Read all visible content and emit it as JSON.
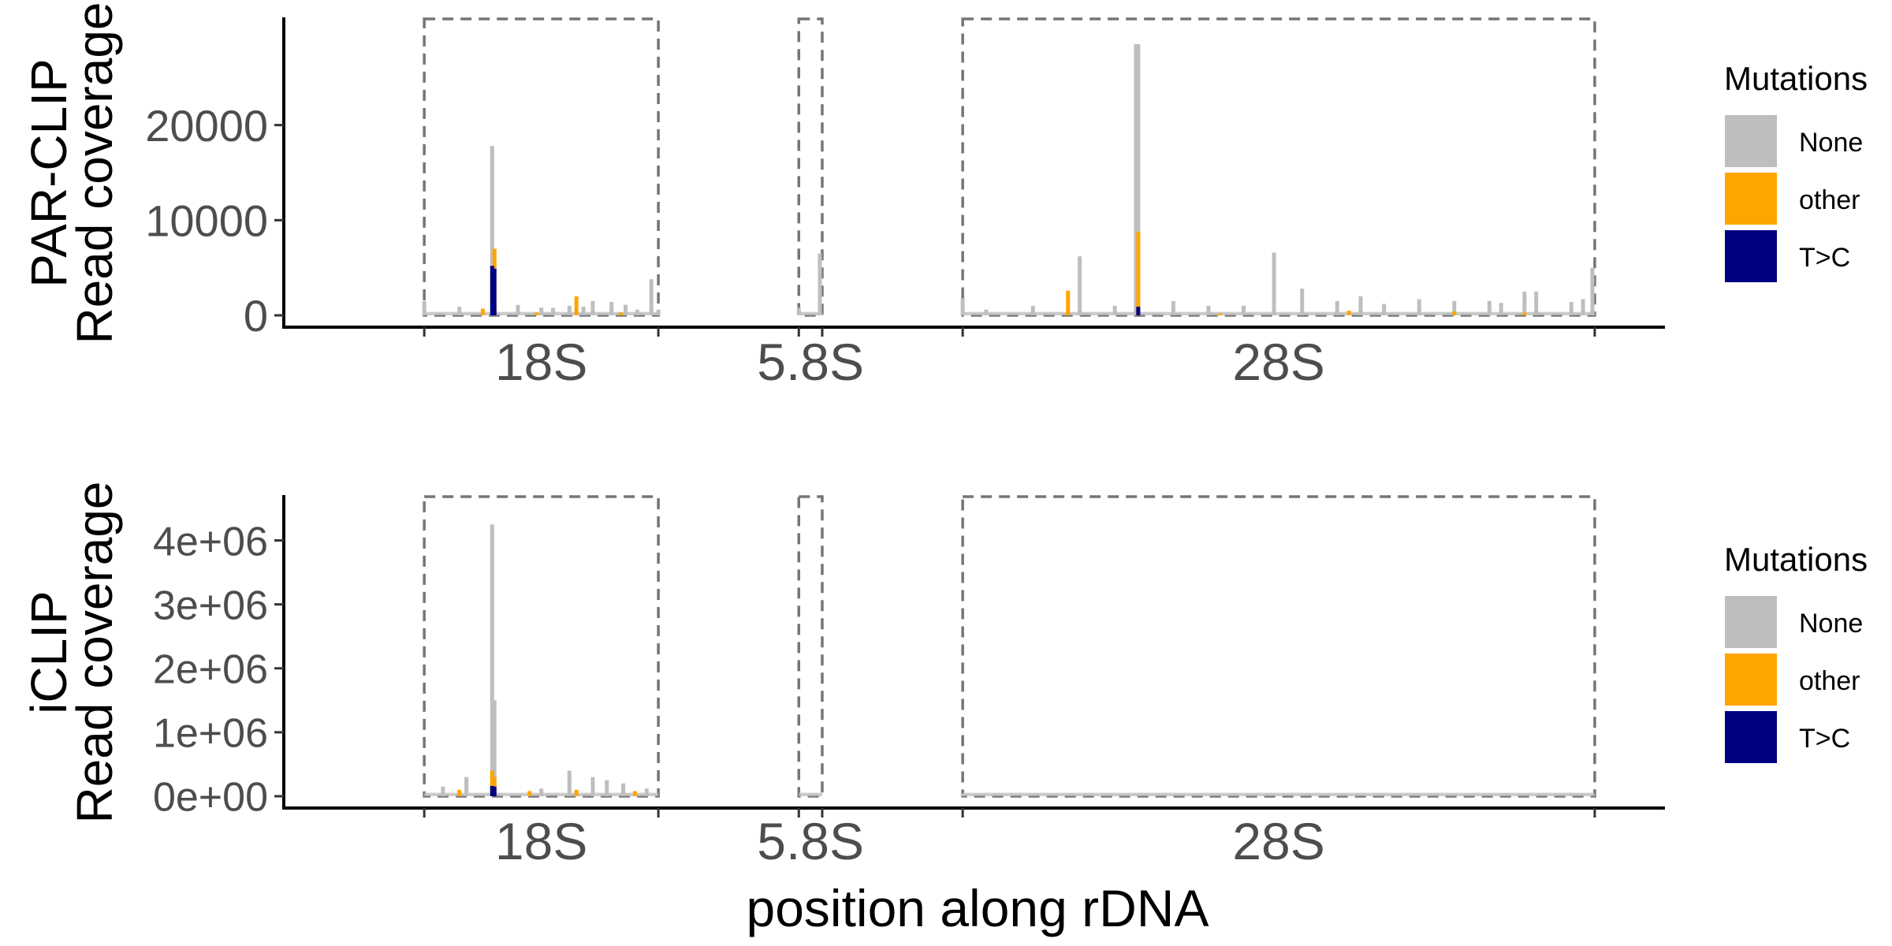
{
  "chart_data": [
    {
      "type": "area",
      "panel": "top",
      "ylabel": [
        "PAR-CLIP",
        "Read coverage"
      ],
      "ylim": [
        0,
        30000
      ],
      "yticks": [
        {
          "value": 0,
          "label": "0"
        },
        {
          "value": 10000,
          "label": "10000"
        },
        {
          "value": 20000,
          "label": "20000"
        }
      ],
      "regions": [
        {
          "label": "18S",
          "start": 0.0,
          "end": 1.0
        },
        {
          "label": "5.8S",
          "start": 1.6,
          "end": 1.7
        },
        {
          "label": "28S",
          "start": 2.3,
          "end": 5.0
        }
      ],
      "xlim": [
        -0.6,
        5.3
      ],
      "grid": false,
      "series": [
        {
          "name": "None",
          "color": "#bebebe",
          "peaks": [
            [
              0.0,
              1500
            ],
            [
              0.15,
              900
            ],
            [
              0.3,
              1200
            ],
            [
              0.4,
              1100
            ],
            [
              0.5,
              800
            ],
            [
              0.55,
              800
            ],
            [
              0.62,
              1000
            ],
            [
              0.68,
              900
            ],
            [
              0.72,
              1500
            ],
            [
              0.8,
              1400
            ],
            [
              0.86,
              1100
            ],
            [
              0.91,
              600
            ],
            [
              0.97,
              3800
            ],
            [
              1.0,
              600
            ],
            [
              1.6,
              800
            ],
            [
              1.69,
              6500
            ],
            [
              2.3,
              1800
            ],
            [
              2.4,
              600
            ],
            [
              2.6,
              1000
            ],
            [
              2.8,
              6200
            ],
            [
              2.95,
              1000
            ],
            [
              3.05,
              28500
            ],
            [
              3.2,
              1500
            ],
            [
              3.35,
              1000
            ],
            [
              3.5,
              1000
            ],
            [
              3.75,
              2800
            ],
            [
              3.9,
              1500
            ],
            [
              4.0,
              2000
            ],
            [
              4.1,
              1200
            ],
            [
              4.25,
              1700
            ],
            [
              4.4,
              1500
            ],
            [
              4.55,
              1500
            ],
            [
              4.6,
              1300
            ],
            [
              4.7,
              2500
            ],
            [
              4.75,
              2500
            ],
            [
              4.9,
              1400
            ],
            [
              4.95,
              1700
            ]
          ],
          "extra_peaks": [
            [
              0.29,
              17800
            ],
            [
              3.04,
              28500
            ],
            [
              3.63,
              6600
            ],
            [
              4.99,
              5000
            ]
          ]
        },
        {
          "name": "other",
          "color": "#ffa500",
          "peaks": [
            [
              0.25,
              700
            ],
            [
              0.3,
              7000
            ],
            [
              0.48,
              300
            ],
            [
              0.65,
              2000
            ],
            [
              0.84,
              300
            ],
            [
              2.75,
              2600
            ],
            [
              3.05,
              8800
            ],
            [
              3.4,
              200
            ],
            [
              3.95,
              500
            ],
            [
              4.4,
              400
            ],
            [
              4.7,
              300
            ]
          ]
        },
        {
          "name": "T>C",
          "color": "#000080",
          "peaks": [
            [
              0.29,
              5200
            ],
            [
              0.3,
              4900
            ],
            [
              3.05,
              900
            ]
          ]
        }
      ]
    },
    {
      "type": "area",
      "panel": "bottom",
      "ylabel": [
        "iCLIP",
        "Read coverage"
      ],
      "ylim": [
        0,
        4500000
      ],
      "yticks": [
        {
          "value": 0,
          "label": "0e+00"
        },
        {
          "value": 1000000,
          "label": "1e+06"
        },
        {
          "value": 2000000,
          "label": "2e+06"
        },
        {
          "value": 3000000,
          "label": "3e+06"
        },
        {
          "value": 4000000,
          "label": "4e+06"
        }
      ],
      "regions": [
        {
          "label": "18S",
          "start": 0.0,
          "end": 1.0
        },
        {
          "label": "5.8S",
          "start": 1.6,
          "end": 1.7
        },
        {
          "label": "28S",
          "start": 2.3,
          "end": 5.0
        }
      ],
      "xlim": [
        -0.6,
        5.3
      ],
      "grid": false,
      "xlabel": "position along rDNA",
      "series": [
        {
          "name": "None",
          "color": "#bebebe",
          "peaks": [
            [
              0.08,
              150000
            ],
            [
              0.18,
              300000
            ],
            [
              0.29,
              4250000
            ],
            [
              0.3,
              1500000
            ],
            [
              0.5,
              120000
            ],
            [
              0.62,
              400000
            ],
            [
              0.72,
              300000
            ],
            [
              0.78,
              250000
            ],
            [
              0.85,
              200000
            ],
            [
              0.95,
              120000
            ],
            [
              2.3,
              40000
            ],
            [
              3.05,
              30000
            ],
            [
              4.9,
              50000
            ]
          ]
        },
        {
          "name": "other",
          "color": "#ffa500",
          "peaks": [
            [
              0.15,
              100000
            ],
            [
              0.29,
              400000
            ],
            [
              0.3,
              300000
            ],
            [
              0.45,
              80000
            ],
            [
              0.65,
              100000
            ],
            [
              0.9,
              80000
            ]
          ]
        },
        {
          "name": "T>C",
          "color": "#000080",
          "peaks": [
            [
              0.29,
              160000
            ],
            [
              0.3,
              150000
            ]
          ]
        }
      ]
    }
  ],
  "legend": {
    "title": "Mutations",
    "position": "right",
    "entries": [
      {
        "label": "None",
        "color": "#bebebe"
      },
      {
        "label": "other",
        "color": "#ffa500"
      },
      {
        "label": "T>C",
        "color": "#000080"
      }
    ]
  }
}
